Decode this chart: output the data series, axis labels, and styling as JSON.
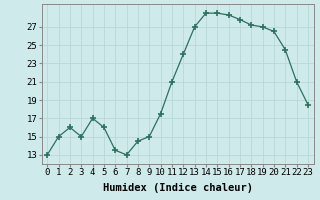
{
  "x": [
    0,
    1,
    2,
    3,
    4,
    5,
    6,
    7,
    8,
    9,
    10,
    11,
    12,
    13,
    14,
    15,
    16,
    17,
    18,
    19,
    20,
    21,
    22,
    23
  ],
  "y": [
    13,
    15,
    16,
    15,
    17,
    16,
    13.5,
    13,
    14.5,
    15,
    17.5,
    21,
    24,
    27,
    28.5,
    28.5,
    28.3,
    27.8,
    27.2,
    27,
    26.5,
    24.5,
    21,
    18.5
  ],
  "line_color": "#2d7060",
  "marker": "+",
  "marker_size": 4,
  "bg_color": "#ceeaea",
  "grid_color": "#b8d8d8",
  "xlabel": "Humidex (Indice chaleur)",
  "xlabel_fontsize": 7.5,
  "ytick_labels": [
    "13",
    "15",
    "17",
    "19",
    "21",
    "23",
    "25",
    "27"
  ],
  "ytick_vals": [
    13,
    15,
    17,
    19,
    21,
    23,
    25,
    27
  ],
  "xticks": [
    0,
    1,
    2,
    3,
    4,
    5,
    6,
    7,
    8,
    9,
    10,
    11,
    12,
    13,
    14,
    15,
    16,
    17,
    18,
    19,
    20,
    21,
    22,
    23
  ],
  "ylim": [
    12.0,
    29.5
  ],
  "xlim": [
    -0.5,
    23.5
  ],
  "tick_fontsize": 6.5
}
